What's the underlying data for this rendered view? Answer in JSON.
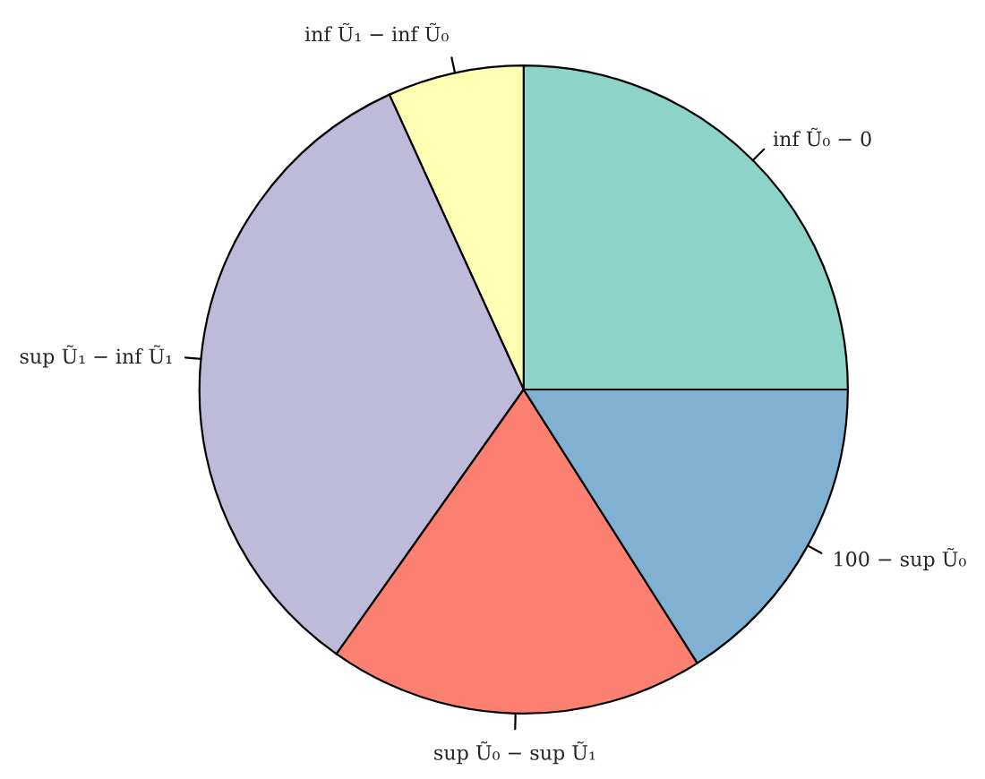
{
  "chart_data": {
    "type": "pie",
    "categories": [
      "inf Ũ₀ − 0",
      "inf Ũ₁ − inf Ũ₀",
      "sup Ũ₁ − inf Ũ₁",
      "sup Ũ₀ − sup Ũ₁",
      "100 − sup Ũ₀"
    ],
    "values": [
      25,
      6.8,
      33.4,
      18.8,
      16
    ],
    "colors": [
      "#8dd3c7",
      "#ffffb3",
      "#bebada",
      "#fb8072",
      "#80b1d3"
    ],
    "legend": false
  }
}
